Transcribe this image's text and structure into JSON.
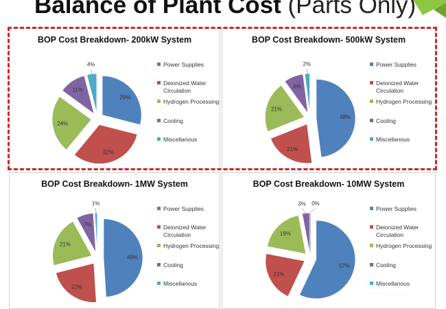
{
  "slide": {
    "title_bold": "Balance of Plant Cost",
    "title_light": " (Parts Only)"
  },
  "colors": {
    "power": "#4f81bd",
    "water": "#c0504d",
    "hydrogen": "#9bbb59",
    "cooling": "#8064a2",
    "misc": "#4bacc6",
    "highlight_border": "#c8262c",
    "accent": "#8dc63f"
  },
  "chart_data": [
    {
      "type": "pie",
      "title": "BOP Cost Breakdown- 200kW System",
      "categories": [
        "Power Supplies",
        "Deionized Water Circulation",
        "Hydrogen Processing",
        "Cooling",
        "Miscellanous"
      ],
      "values": [
        29,
        32,
        24,
        11,
        4
      ],
      "labels": [
        "29%",
        "32%",
        "24%",
        "11%",
        "4%"
      ],
      "exploded": true,
      "highlighted": true
    },
    {
      "type": "pie",
      "title": "BOP Cost Breakdown- 500kW System",
      "categories": [
        "Power Supplies",
        "Deionized Water Circulation",
        "Hydrogen Processing",
        "Cooling",
        "Miscellanous"
      ],
      "values": [
        48,
        21,
        21,
        8,
        2
      ],
      "labels": [
        "48%",
        "21%",
        "21%",
        "8%",
        "2%"
      ],
      "exploded": true
    },
    {
      "type": "pie",
      "title": "BOP Cost Breakdown- 1MW System",
      "categories": [
        "Power Supplies",
        "Deionized Water Circulation",
        "Hydrogen Processing",
        "Cooling",
        "Miscellanous"
      ],
      "values": [
        49,
        22,
        21,
        7,
        1
      ],
      "labels": [
        "49%",
        "22%",
        "21%",
        "7%",
        "1%"
      ],
      "exploded": true
    },
    {
      "type": "pie",
      "title": "BOP Cost Breakdown- 10MW System",
      "categories": [
        "Power Supplies",
        "Deionized Water Circulation",
        "Hydrogen Processing",
        "Cooling",
        "Miscellanous"
      ],
      "values": [
        57,
        21,
        19,
        3,
        0
      ],
      "labels": [
        "57%",
        "21%",
        "19%",
        "3%",
        "0%"
      ],
      "exploded": true
    }
  ],
  "legend": {
    "items": [
      [
        "Power Supplies"
      ],
      [
        "Deionized Water",
        "Circulation"
      ],
      [
        "Hydrogen Processing"
      ],
      [
        "Cooling"
      ],
      [
        "Miscellanous"
      ]
    ]
  }
}
